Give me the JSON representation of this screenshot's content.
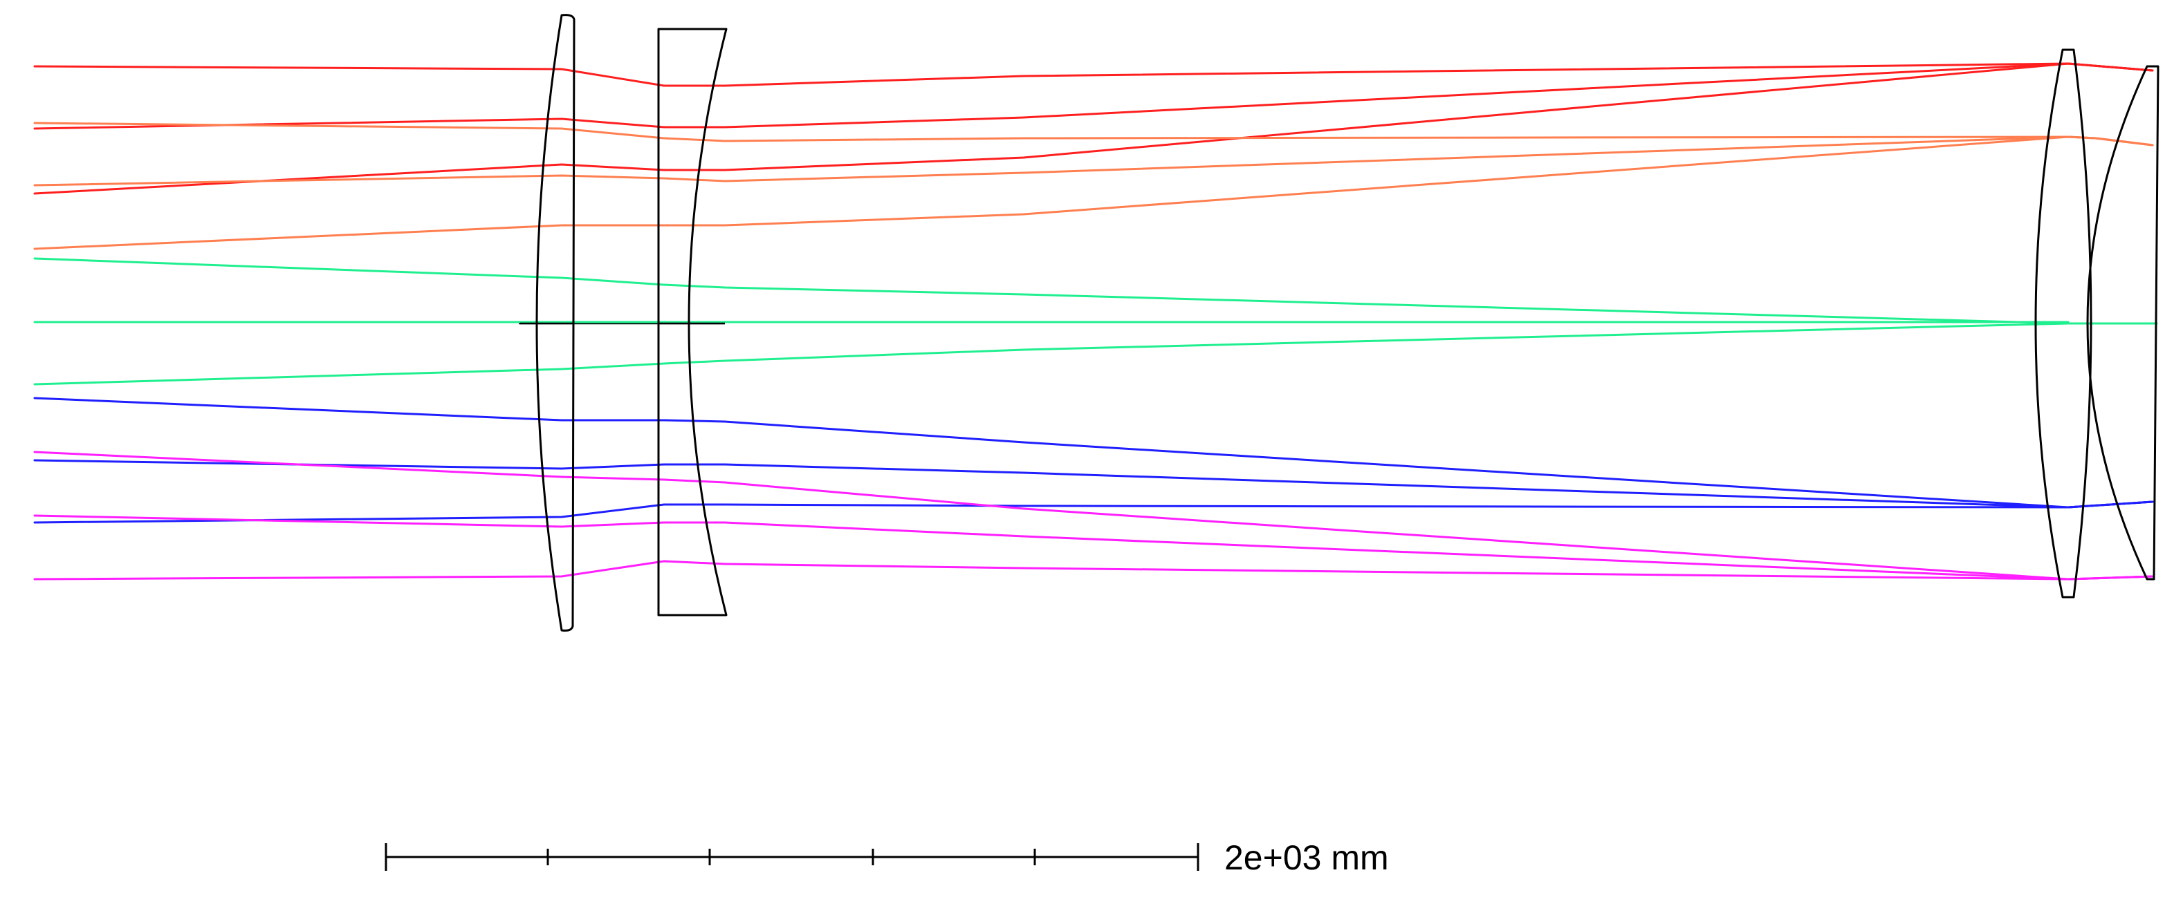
{
  "scale_bar": {
    "label": "2e+03 mm"
  },
  "ray_groups": [
    {
      "color": "#ff1f1f"
    },
    {
      "color": "#ff7f50"
    },
    {
      "color": "#1fef8f"
    },
    {
      "color": "#1f1fff"
    },
    {
      "color": "#ff1fff"
    }
  ],
  "elements": [
    {
      "name": "front-meniscus-lens"
    },
    {
      "name": "front-concave-lens"
    },
    {
      "name": "rear-biconvex-lens"
    },
    {
      "name": "rear-meniscus-lens"
    }
  ]
}
